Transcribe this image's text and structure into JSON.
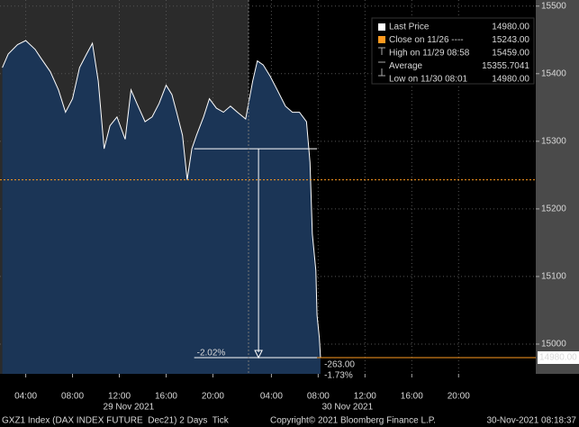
{
  "chart_data": {
    "type": "area",
    "x": [
      2.0,
      2.5,
      3.3,
      4.0,
      4.8,
      5.3,
      6.1,
      6.8,
      7.4,
      8.0,
      8.6,
      9.2,
      9.7,
      10.2,
      10.7,
      11.2,
      11.8,
      12.5,
      13.0,
      13.5,
      14.2,
      14.8,
      15.4,
      16.0,
      16.5,
      16.9,
      17.4,
      17.8,
      18.2,
      18.6,
      19.2,
      19.7,
      20.3,
      20.9,
      21.5,
      22.1,
      22.8,
      23.4,
      23.8,
      24.3,
      24.9,
      25.5,
      26.2,
      26.8,
      27.4,
      28.0,
      28.3,
      28.5,
      28.8,
      28.9,
      29.1,
      29.2
    ],
    "series": [
      {
        "name": "Last Price",
        "color": "#ffffff",
        "values": [
          15409,
          15429,
          15443,
          15449,
          15436,
          15423,
          15403,
          15376,
          15343,
          15363,
          15409,
          15429,
          15445,
          15389,
          15289,
          15323,
          15336,
          15303,
          15376,
          15356,
          15329,
          15336,
          15356,
          15383,
          15369,
          15343,
          15309,
          15243,
          15289,
          15309,
          15336,
          15363,
          15349,
          15343,
          15352,
          15343,
          15333,
          15389,
          15419,
          15413,
          15396,
          15376,
          15352,
          15343,
          15343,
          15329,
          15269,
          15163,
          15109,
          15043,
          15009,
          14980
        ]
      }
    ],
    "xlim": [
      1.8,
      47.6
    ],
    "xticks": [
      {
        "value": 4,
        "label": "04:00"
      },
      {
        "value": 8,
        "label": "08:00"
      },
      {
        "value": 12,
        "label": "12:00"
      },
      {
        "value": 16,
        "label": "16:00"
      },
      {
        "value": 20,
        "label": "20:00"
      },
      {
        "value": 25,
        "label": "04:00"
      },
      {
        "value": 29,
        "label": "08:00"
      },
      {
        "value": 33,
        "label": "12:00"
      },
      {
        "value": 37,
        "label": "16:00"
      },
      {
        "value": 41,
        "label": "20:00"
      }
    ],
    "date_labels": [
      {
        "text": "29 Nov 2021",
        "x": 12.8
      },
      {
        "text": "30 Nov 2021",
        "x": 31.5
      }
    ],
    "ylim": [
      14956,
      15509
    ],
    "yticks": [
      15000,
      15100,
      15200,
      15300,
      15400,
      15500
    ],
    "grid": true,
    "close": 15243,
    "close_color": "#ff9a1f",
    "last_price": {
      "value": 14980,
      "label": "14980.00"
    },
    "measure": {
      "from": 15289,
      "to": 14980,
      "x": [
        18.4,
        28.9
      ],
      "arrow_x": 23.9,
      "label": "-2.02%",
      "change_label": "-263.00",
      "pct_label": "-1.73%"
    },
    "legend": [
      {
        "label": "Last Price",
        "value_label": "14980.00"
      },
      {
        "label": "Close on 11/26 ----",
        "value_label": "15243.00"
      },
      {
        "label": "High on 11/29 08:58",
        "value_label": "15459.00"
      },
      {
        "label": "Average",
        "value_label": "15355.7041"
      },
      {
        "label": "Low on 11/30 08:01",
        "value_label": "14980.00"
      }
    ],
    "footer": {
      "left": "GXZ1 Index (DAX INDEX FUTURE  Dec21) 2 Days  Tick",
      "center": "Copyright© 2021 Bloomberg Finance L.P.",
      "right": "30-Nov-2021 08:18:37"
    }
  }
}
